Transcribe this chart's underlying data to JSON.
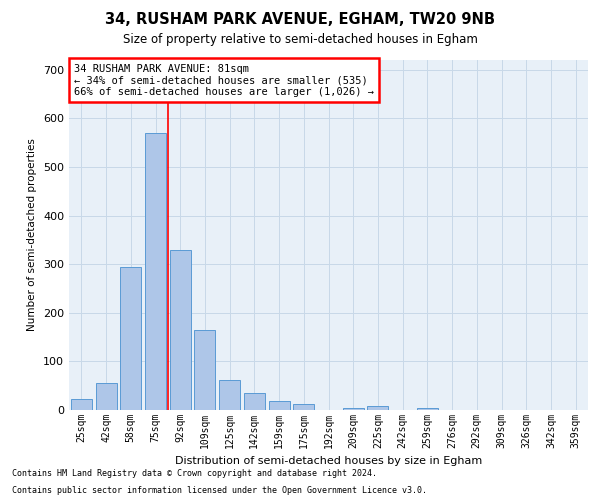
{
  "title1": "34, RUSHAM PARK AVENUE, EGHAM, TW20 9NB",
  "title2": "Size of property relative to semi-detached houses in Egham",
  "xlabel": "Distribution of semi-detached houses by size in Egham",
  "ylabel": "Number of semi-detached properties",
  "categories": [
    "25sqm",
    "42sqm",
    "58sqm",
    "75sqm",
    "92sqm",
    "109sqm",
    "125sqm",
    "142sqm",
    "159sqm",
    "175sqm",
    "192sqm",
    "209sqm",
    "225sqm",
    "242sqm",
    "259sqm",
    "276sqm",
    "292sqm",
    "309sqm",
    "326sqm",
    "342sqm",
    "359sqm"
  ],
  "values": [
    22,
    55,
    295,
    570,
    330,
    165,
    62,
    35,
    18,
    13,
    0,
    5,
    8,
    0,
    5,
    0,
    0,
    0,
    0,
    0,
    0
  ],
  "bar_color": "#aec6e8",
  "bar_edge_color": "#5a9bd5",
  "property_line_x": 3.5,
  "property_sqm": 81,
  "pct_smaller": 34,
  "count_smaller": 535,
  "pct_larger": 66,
  "count_larger": "1,026",
  "annotation_text_line1": "34 RUSHAM PARK AVENUE: 81sqm",
  "annotation_text_line2": "← 34% of semi-detached houses are smaller (535)",
  "annotation_text_line3": "66% of semi-detached houses are larger (1,026) →",
  "ylim": [
    0,
    720
  ],
  "yticks": [
    0,
    100,
    200,
    300,
    400,
    500,
    600,
    700
  ],
  "grid_color": "#c8d8e8",
  "background_color": "#e8f0f8",
  "footnote1": "Contains HM Land Registry data © Crown copyright and database right 2024.",
  "footnote2": "Contains public sector information licensed under the Open Government Licence v3.0."
}
